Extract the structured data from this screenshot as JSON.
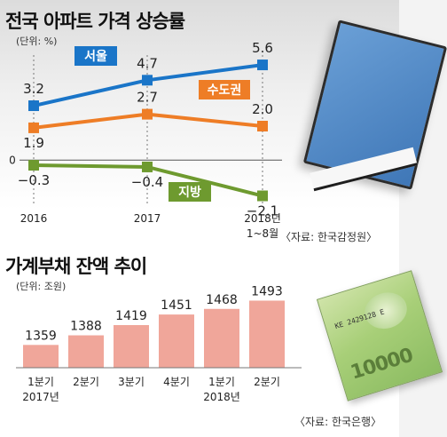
{
  "chart1": {
    "title": "전국 아파트 가격 상승률",
    "unit": "(단위: %)",
    "source": "〈자료: 한국감정원〉",
    "colors": {
      "seoul": "#1a75c8",
      "capital": "#ee7d26",
      "local": "#6e9a2f"
    }
  },
  "chart2": {
    "title": "가계부채 잔액 추이",
    "unit": "(단위: 조원)",
    "source": "〈자료: 한국은행〉",
    "bar_color": "#f0a69a"
  },
  "chart_data": [
    {
      "type": "line",
      "title": "전국 아파트 가격 상승률",
      "categories": [
        "2016",
        "2017",
        "2018년 1~8월"
      ],
      "category_lines": [
        [
          "2016"
        ],
        [
          "2017"
        ],
        [
          "2018년",
          "1~8월"
        ]
      ],
      "zero_label": "0",
      "series": [
        {
          "name": "서울",
          "values": [
            3.2,
            4.7,
            5.6
          ],
          "labels": [
            "3.2",
            "4.7",
            "5.6"
          ]
        },
        {
          "name": "수도권",
          "values": [
            1.9,
            2.7,
            2.0
          ],
          "labels": [
            "1.9",
            "2.7",
            "2.0"
          ]
        },
        {
          "name": "지방",
          "values": [
            -0.3,
            -0.4,
            -2.1
          ],
          "labels": [
            "−0.3",
            "−0.4",
            "−2.1"
          ]
        }
      ],
      "ylim": [
        -2.7,
        6.7
      ],
      "grid": false,
      "legend": "inline labels"
    },
    {
      "type": "bar",
      "title": "가계부채 잔액 추이",
      "categories": [
        "1분기 2017년",
        "2분기",
        "3분기",
        "4분기",
        "1분기 2018년",
        "2분기"
      ],
      "category_lines": [
        [
          "1분기",
          "2017년"
        ],
        [
          "2분기"
        ],
        [
          "3분기"
        ],
        [
          "4분기"
        ],
        [
          "1분기",
          "2018년"
        ],
        [
          "2분기"
        ]
      ],
      "values": [
        1359,
        1388,
        1419,
        1451,
        1468,
        1493
      ],
      "labels": [
        "1359",
        "1388",
        "1419",
        "1451",
        "1468",
        "1493"
      ],
      "ylim": [
        1290,
        1505
      ],
      "grid": false
    }
  ],
  "decor": {
    "banknote_serial": "KE 2429128 E",
    "banknote_denomination": "10000"
  }
}
